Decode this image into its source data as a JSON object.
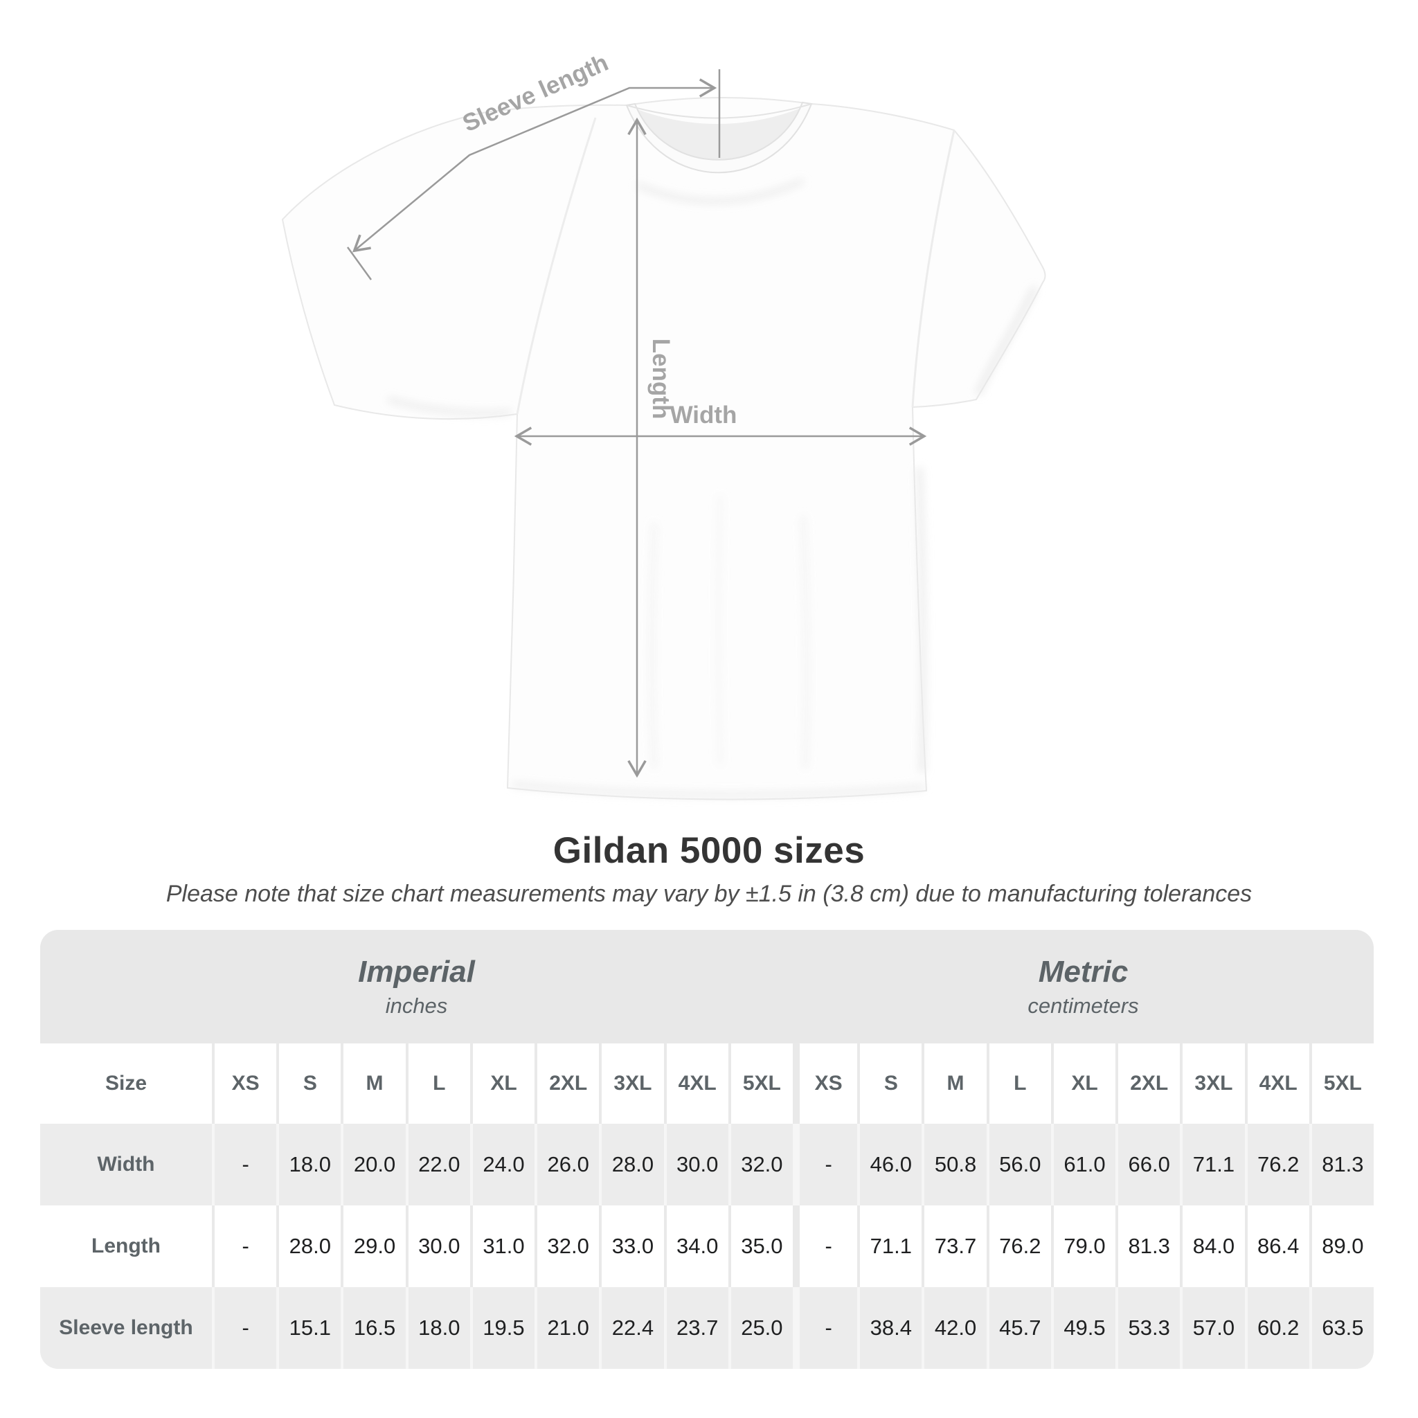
{
  "diagram": {
    "sleeve_length_label": "Sleeve length",
    "length_label": "Length",
    "width_label": "Width"
  },
  "chart_data": {
    "type": "table",
    "title": "Gildan 5000 sizes",
    "subtitle": "Please note that size chart measurements may vary by ±1.5 in (3.8 cm) due to manufacturing tolerances",
    "unit_groups": [
      {
        "label": "Imperial",
        "sublabel": "inches"
      },
      {
        "label": "Metric",
        "sublabel": "centimeters"
      }
    ],
    "size_column_header": "Size",
    "sizes": [
      "XS",
      "S",
      "M",
      "L",
      "XL",
      "2XL",
      "3XL",
      "4XL",
      "5XL"
    ],
    "rows": [
      {
        "label": "Width",
        "imperial": [
          "-",
          "18.0",
          "20.0",
          "22.0",
          "24.0",
          "26.0",
          "28.0",
          "30.0",
          "32.0"
        ],
        "metric": [
          "-",
          "46.0",
          "50.8",
          "56.0",
          "61.0",
          "66.0",
          "71.1",
          "76.2",
          "81.3"
        ]
      },
      {
        "label": "Length",
        "imperial": [
          "-",
          "28.0",
          "29.0",
          "30.0",
          "31.0",
          "32.0",
          "33.0",
          "34.0",
          "35.0"
        ],
        "metric": [
          "-",
          "71.1",
          "73.7",
          "76.2",
          "79.0",
          "81.3",
          "84.0",
          "86.4",
          "89.0"
        ]
      },
      {
        "label": "Sleeve length",
        "imperial": [
          "-",
          "15.1",
          "16.5",
          "18.0",
          "19.5",
          "21.0",
          "22.4",
          "23.7",
          "25.0"
        ],
        "metric": [
          "-",
          "38.4",
          "42.0",
          "45.7",
          "49.5",
          "53.3",
          "57.0",
          "60.2",
          "63.5"
        ]
      }
    ]
  },
  "colors": {
    "band_gray": "#e8e8e8",
    "row_gray": "#ececec",
    "header_text": "#5d6468",
    "value_text": "#1e1f20",
    "annotation_gray": "#9a9a9a",
    "title_text": "#343434"
  }
}
